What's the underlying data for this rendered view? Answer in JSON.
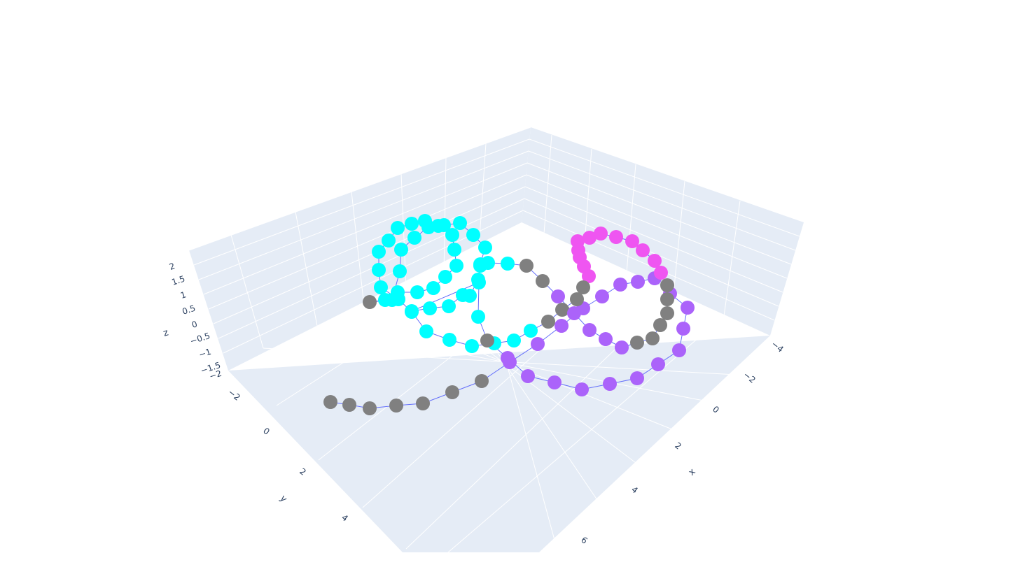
{
  "chart_data": {
    "type": "scatter3d",
    "title": "",
    "axes": {
      "x": {
        "title": "x",
        "ticks": [
          "−4",
          "−2",
          "0",
          "2",
          "4",
          "6"
        ],
        "range": [
          -4.5,
          7
        ]
      },
      "y": {
        "title": "y",
        "ticks": [
          "−2",
          "0",
          "2",
          "4"
        ],
        "range": [
          -2.5,
          5
        ]
      },
      "z": {
        "title": "z",
        "ticks": [
          "2",
          "1.5",
          "1",
          "0.5",
          "0",
          "−0.5",
          "−1",
          "−1.5",
          "−2"
        ],
        "range": [
          -2,
          2
        ]
      }
    },
    "grid": true,
    "background_color": "#e5ecf6",
    "line_color": "#636efa",
    "marker_colors": [
      "#808080",
      "#00ffff",
      "#ab63fa",
      "#ef55f1"
    ],
    "legend": "none"
  }
}
